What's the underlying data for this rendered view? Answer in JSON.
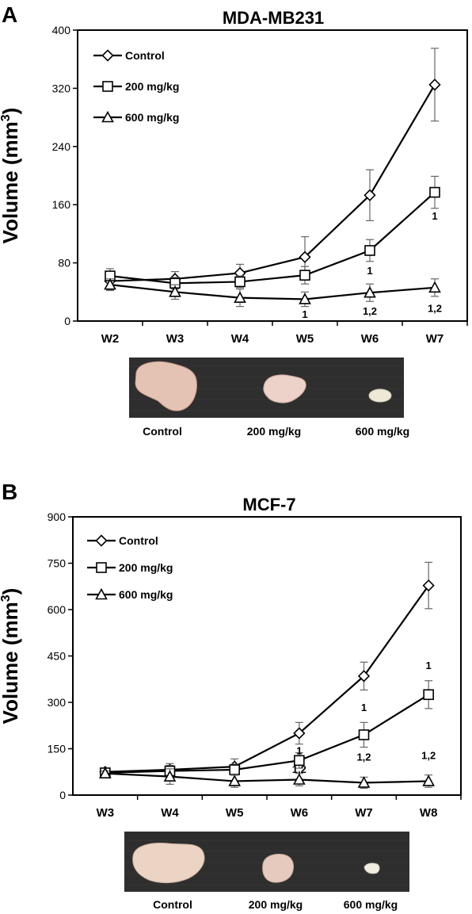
{
  "panels": [
    {
      "letter": "A",
      "photo_labels": [
        "Control",
        "200 mg/kg",
        "600 mg/kg"
      ]
    },
    {
      "letter": "B",
      "photo_labels": [
        "Control",
        "200 mg/kg",
        "600 mg/kg"
      ]
    }
  ],
  "chart_data": [
    {
      "type": "line",
      "title": "MDA-MB231",
      "ylabel": "Volume (mm3)",
      "xlabel": "",
      "categories": [
        "W2",
        "W3",
        "W4",
        "W5",
        "W6",
        "W7"
      ],
      "ylim": [
        0,
        400
      ],
      "yticks": [
        0,
        80,
        160,
        240,
        320,
        400
      ],
      "legend_position": "top-left",
      "series": [
        {
          "name": "Control",
          "marker": "diamond",
          "values": [
            55,
            58,
            66,
            88,
            173,
            325
          ],
          "errors": [
            12,
            10,
            12,
            28,
            35,
            50
          ]
        },
        {
          "name": "200 mg/kg",
          "marker": "square",
          "values": [
            62,
            52,
            54,
            63,
            97,
            177
          ],
          "errors": [
            10,
            8,
            8,
            12,
            15,
            22
          ]
        },
        {
          "name": "600 mg/kg",
          "marker": "triangle",
          "values": [
            50,
            40,
            32,
            30,
            39,
            46
          ],
          "errors": [
            8,
            10,
            12,
            10,
            12,
            12
          ]
        }
      ],
      "annotations": [
        {
          "category": "W5",
          "y": 10,
          "text": "1"
        },
        {
          "category": "W6",
          "y": 70,
          "text": "1"
        },
        {
          "category": "W6",
          "y": 14,
          "text": "1,2"
        },
        {
          "category": "W7",
          "y": 145,
          "text": "1"
        },
        {
          "category": "W7",
          "y": 18,
          "text": "1,2"
        }
      ]
    },
    {
      "type": "line",
      "title": "MCF-7",
      "ylabel": "Volume (mm3)",
      "xlabel": "",
      "categories": [
        "W3",
        "W4",
        "W5",
        "W6",
        "W7",
        "W8"
      ],
      "ylim": [
        0,
        900
      ],
      "yticks": [
        0,
        150,
        300,
        450,
        600,
        750,
        900
      ],
      "legend_position": "top-left",
      "series": [
        {
          "name": "Control",
          "marker": "diamond",
          "values": [
            75,
            82,
            92,
            200,
            385,
            678
          ],
          "errors": [
            10,
            20,
            25,
            35,
            45,
            75
          ]
        },
        {
          "name": "200 mg/kg",
          "marker": "square",
          "values": [
            72,
            78,
            82,
            112,
            195,
            325
          ],
          "errors": [
            8,
            18,
            18,
            25,
            40,
            45
          ]
        },
        {
          "name": "600 mg/kg",
          "marker": "triangle",
          "values": [
            70,
            60,
            45,
            50,
            40,
            45
          ],
          "errors": [
            8,
            25,
            20,
            20,
            18,
            20
          ]
        }
      ],
      "annotations": [
        {
          "category": "W6",
          "y": 145,
          "text": "1"
        },
        {
          "category": "W6",
          "y": 85,
          "text": "1,2"
        },
        {
          "category": "W7",
          "y": 285,
          "text": "1"
        },
        {
          "category": "W7",
          "y": 125,
          "text": "1,2"
        },
        {
          "category": "W8",
          "y": 420,
          "text": "1"
        },
        {
          "category": "W8",
          "y": 130,
          "text": "1,2"
        }
      ]
    }
  ]
}
